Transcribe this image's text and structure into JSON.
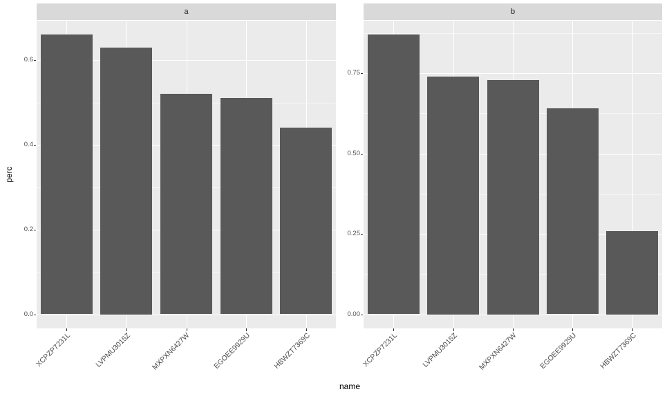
{
  "figure": {
    "x_axis_title": "name",
    "y_axis_title": "perc"
  },
  "chart_data": {
    "type": "bar",
    "faceted": true,
    "facet_variable_values": [
      "a",
      "b"
    ],
    "categories": [
      "XCPZP7231L",
      "LVPMU3015Z",
      "MXPXN6427W",
      "EGOEE9929U",
      "HBWZT7369C"
    ],
    "xlabel": "name",
    "ylabel": "perc",
    "grid": true,
    "legend": false,
    "facets": [
      {
        "label": "a",
        "values": [
          0.66,
          0.63,
          0.52,
          0.51,
          0.44
        ],
        "ytick_labels": [
          "0.0",
          "0.2",
          "0.4",
          "0.6"
        ],
        "ytick_values": [
          0.0,
          0.2,
          0.4,
          0.6
        ],
        "minor_tick_values": [
          0.1,
          0.3,
          0.5
        ],
        "ylim": [
          -0.033,
          0.693
        ]
      },
      {
        "label": "b",
        "values": [
          0.87,
          0.74,
          0.73,
          0.64,
          0.26
        ],
        "ytick_labels": [
          "0.00",
          "0.25",
          "0.50",
          "0.75"
        ],
        "ytick_values": [
          0.0,
          0.25,
          0.5,
          0.75
        ],
        "minor_tick_values": [
          0.125,
          0.375,
          0.625,
          0.875
        ],
        "ylim": [
          -0.0435,
          0.9135
        ]
      }
    ],
    "colors": {
      "bar_fill": "#595959",
      "panel_background": "#EBEBEB",
      "strip_background": "#D9D9D9",
      "gridline": "#FFFFFF",
      "axis_text": "#4D4D4D",
      "strip_text": "#1A1A1A",
      "axis_title": "#000000"
    }
  }
}
